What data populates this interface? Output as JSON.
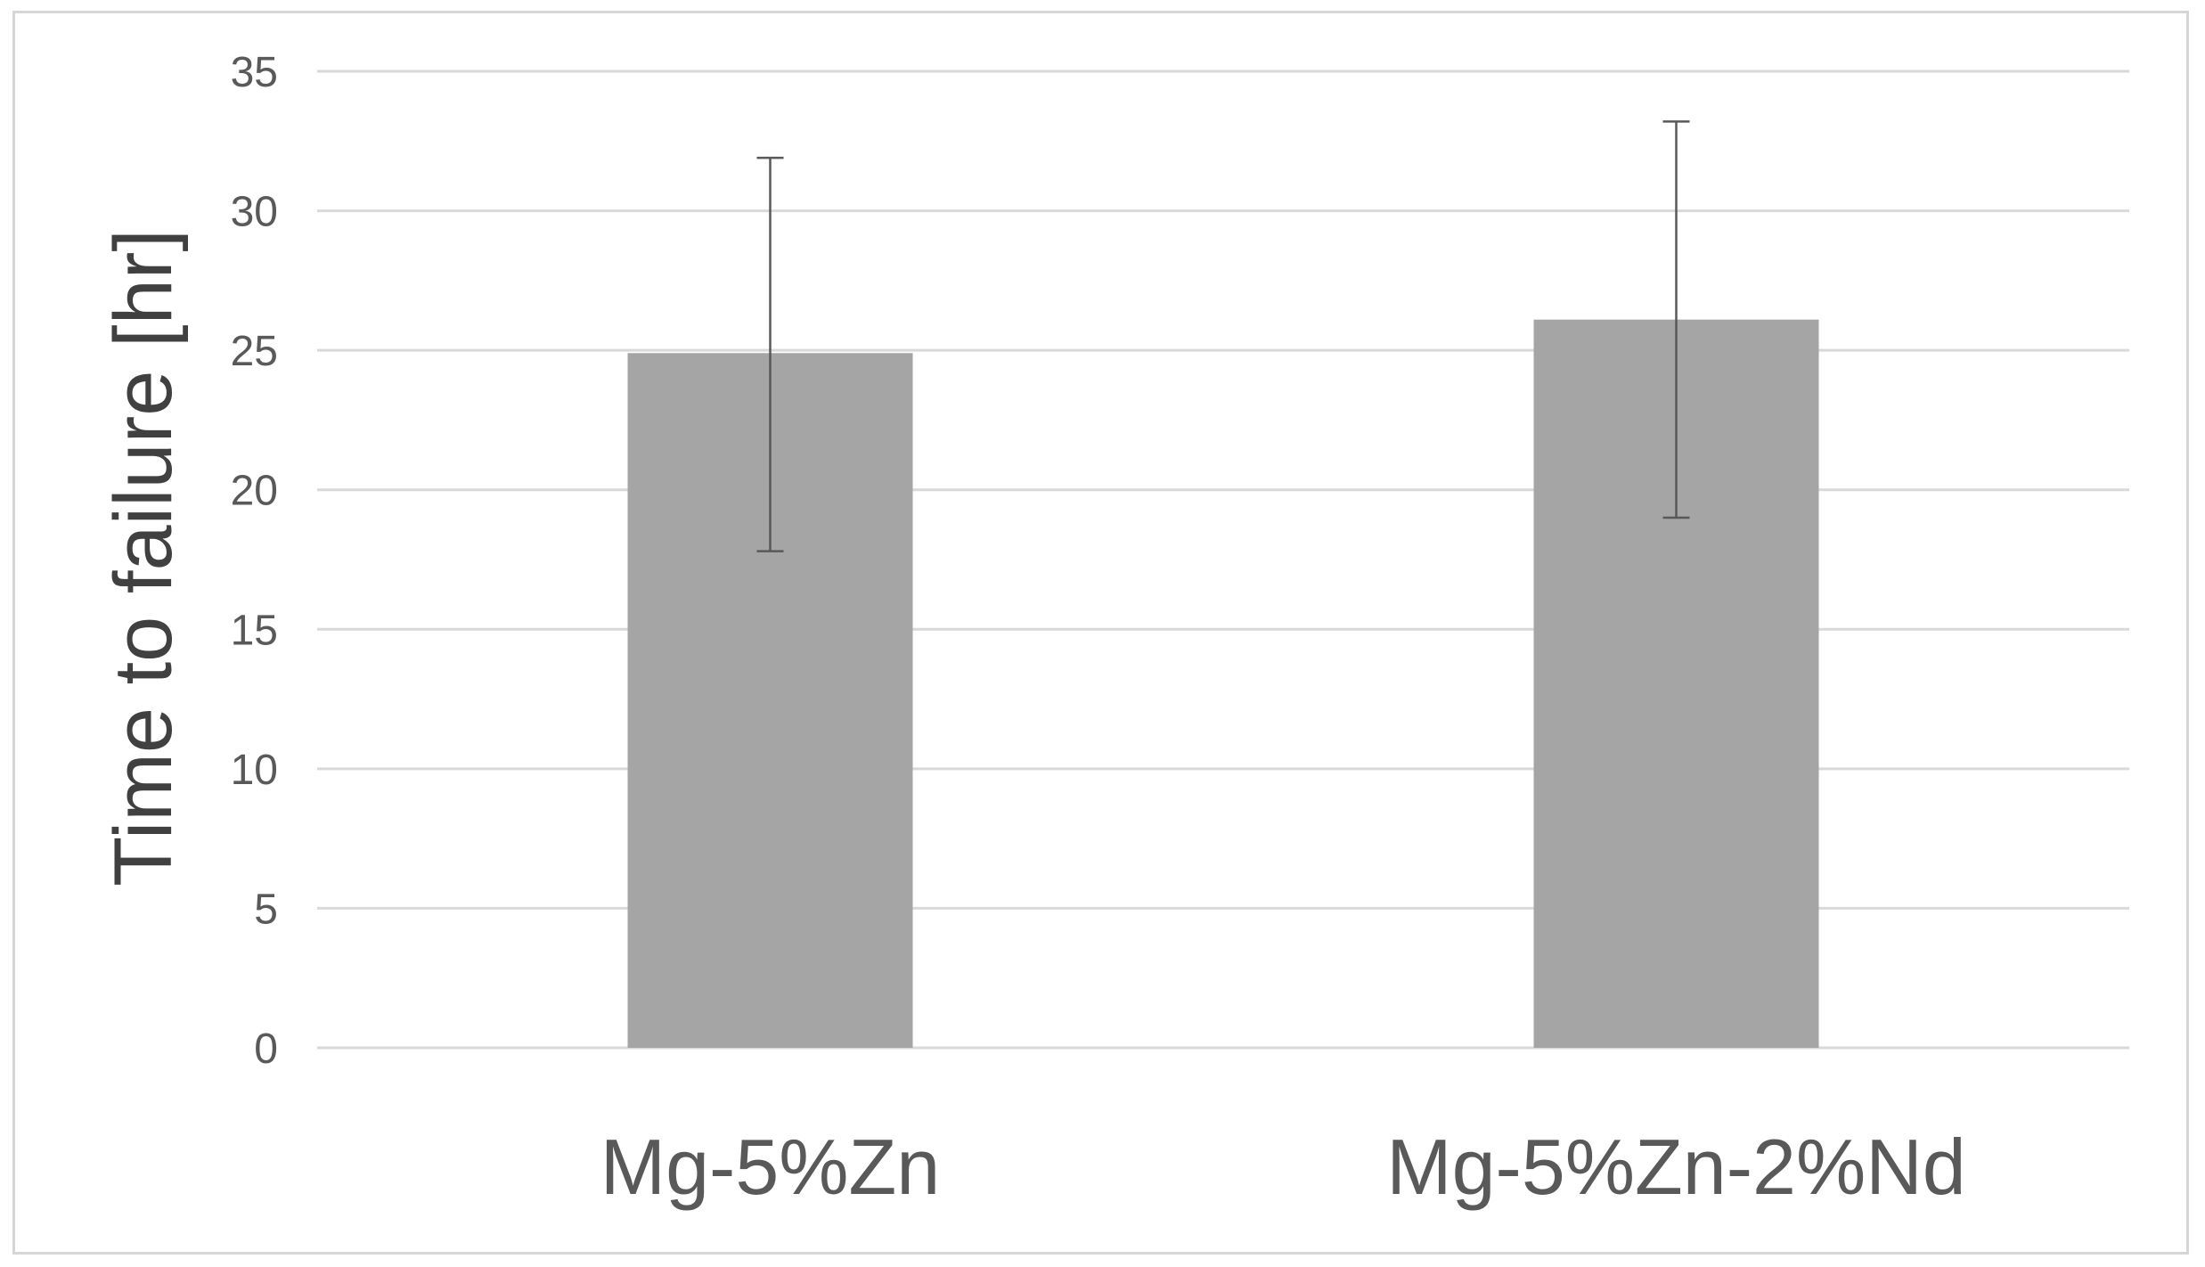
{
  "chart_data": {
    "type": "bar",
    "categories": [
      "Mg-5%Zn",
      "Mg-5%Zn-2%Nd"
    ],
    "values": [
      24.9,
      26.1
    ],
    "error_bars": {
      "upper": [
        31.9,
        33.2
      ],
      "lower": [
        17.8,
        19.0
      ]
    },
    "ylabel": "Time to failure [hr]",
    "xlabel": "",
    "title": "",
    "ylim": [
      0,
      35
    ],
    "yticks": [
      0,
      5,
      10,
      15,
      20,
      25,
      30,
      35
    ],
    "grid": true,
    "legend": "none",
    "colors": {
      "bar": "#a5a5a5",
      "grid": "#d9d9d9",
      "error_bar": "#595959",
      "text": "#595959"
    }
  }
}
